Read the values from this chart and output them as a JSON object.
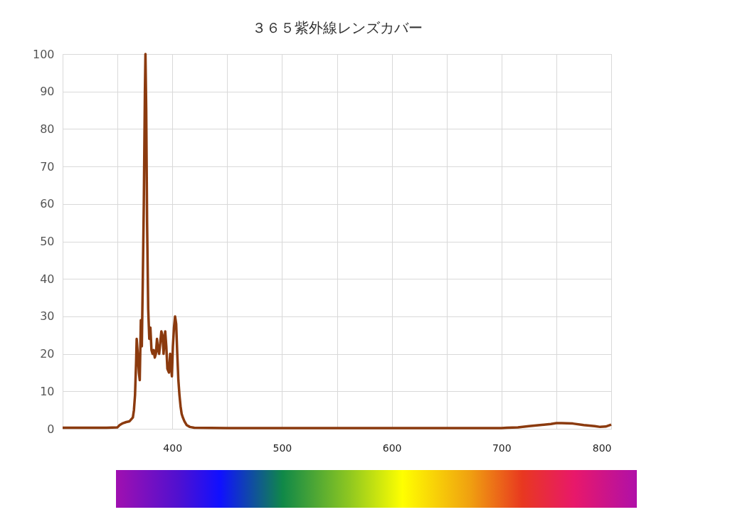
{
  "chart_data": {
    "type": "line",
    "title": "３６５紫外線レンズカバー",
    "x": [
      300,
      320,
      340,
      350,
      352,
      355,
      358,
      361,
      364,
      365,
      366,
      367,
      367.5,
      368.5,
      369.5,
      370.3,
      371.3,
      372.2,
      373,
      374,
      375,
      375.5,
      376.2,
      377,
      378,
      379,
      380,
      381,
      382,
      383,
      384,
      385,
      386,
      387,
      388,
      389,
      390,
      391,
      392,
      393,
      393.5,
      394.5,
      395.5,
      396.9,
      398,
      399,
      399.6,
      400.5,
      401.5,
      402.5,
      403.5,
      404.5,
      405.5,
      406.5,
      407.5,
      408.5,
      409.6,
      411,
      413,
      416,
      420,
      450,
      500,
      550,
      600,
      650,
      700,
      705,
      715,
      725,
      735,
      745,
      750,
      755,
      765,
      775,
      785,
      790,
      795,
      800
    ],
    "series": [
      {
        "color": "#8b3a0e",
        "values": [
          0.3,
          0.3,
          0.3,
          0.4,
          1,
          1.5,
          1.8,
          2,
          3,
          5,
          9,
          18,
          24,
          20,
          15,
          13,
          29,
          22,
          38,
          60,
          90,
          100,
          85,
          55,
          32,
          24,
          27,
          21,
          20,
          21,
          19,
          20,
          24,
          21,
          20,
          23,
          26,
          25,
          20,
          24,
          26,
          22,
          16,
          15,
          20,
          16,
          14,
          22,
          27,
          30,
          28,
          20,
          13,
          9,
          6,
          4,
          3,
          2,
          1,
          0.5,
          0.3,
          0.2,
          0.2,
          0.2,
          0.2,
          0.2,
          0.2,
          0.3,
          0.4,
          0.7,
          1,
          1.3,
          1.5,
          1.5,
          1.4,
          1,
          0.7,
          0.5,
          0.6,
          1.1
        ]
      }
    ],
    "xlim": [
      300,
      800
    ],
    "xticks": [
      {
        "value": 300,
        "label": null
      },
      {
        "value": 350,
        "label": null
      },
      400,
      {
        "value": 450,
        "label": null
      },
      500,
      {
        "value": 550,
        "label": null
      },
      600,
      {
        "value": 650,
        "label": null
      },
      700,
      {
        "value": 750,
        "label": null
      },
      800
    ],
    "ylim": [
      0,
      100
    ],
    "yticks": [
      0,
      10,
      20,
      30,
      40,
      50,
      60,
      70,
      80,
      90,
      100
    ],
    "grid": true,
    "marker": "none",
    "line_style": "solid",
    "legend": false
  }
}
